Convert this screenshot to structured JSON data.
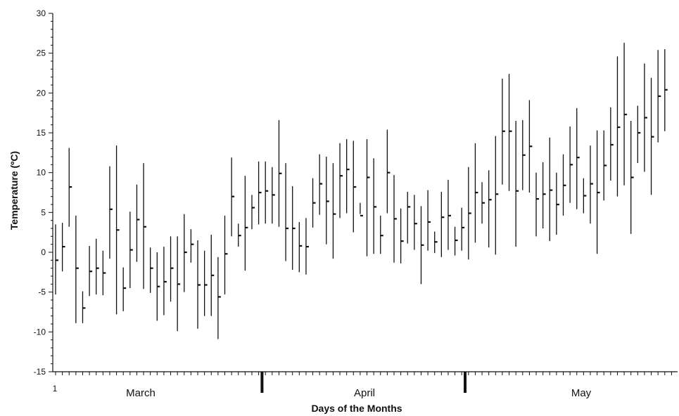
{
  "chart_data": {
    "type": "high-low-average",
    "xlabel": "Days of the Months",
    "ylabel": "Temperature (ºC)",
    "ylim": [
      -15,
      30
    ],
    "y_ticks": [
      30,
      25,
      20,
      15,
      10,
      5,
      0,
      -5,
      -10,
      -15
    ],
    "x_first_label": "1",
    "months": [
      "March",
      "April",
      "May"
    ],
    "month_day_ranges": [
      [
        1,
        31
      ],
      [
        32,
        61
      ],
      [
        62,
        92
      ]
    ],
    "grid": false,
    "series": [
      {
        "values": [
          [
            -5.3,
            3.5,
            -1.0
          ],
          [
            -2.4,
            3.7,
            0.7
          ],
          [
            3.2,
            13.1,
            8.2
          ],
          [
            -8.9,
            4.6,
            -2.0
          ],
          [
            -8.9,
            -4.9,
            -7.0
          ],
          [
            -5.5,
            0.8,
            -2.4
          ],
          [
            -5.3,
            1.7,
            -2.0
          ],
          [
            -5.4,
            0.2,
            -2.6
          ],
          [
            -0.8,
            10.8,
            5.4
          ],
          [
            -7.8,
            13.4,
            2.8
          ],
          [
            -7.4,
            -1.9,
            -4.5
          ],
          [
            -4.5,
            5.1,
            0.3
          ],
          [
            -1.2,
            8.5,
            4.1
          ],
          [
            -4.6,
            11.2,
            3.2
          ],
          [
            -5.1,
            0.6,
            -2.0
          ],
          [
            -8.6,
            0.0,
            -4.3
          ],
          [
            -7.9,
            0.7,
            -3.7
          ],
          [
            -6.2,
            2.0,
            -2.0
          ],
          [
            -9.9,
            2.0,
            -4.0
          ],
          [
            -5.0,
            4.8,
            0.0
          ],
          [
            -1.3,
            2.9,
            1.0
          ],
          [
            -9.6,
            1.5,
            -4.1
          ],
          [
            -8.0,
            0.2,
            -4.1
          ],
          [
            -8.0,
            2.2,
            -2.9
          ],
          [
            -10.9,
            -0.6,
            -5.6
          ],
          [
            -5.3,
            4.6,
            -0.2
          ],
          [
            2.0,
            11.9,
            7.0
          ],
          [
            0.7,
            3.6,
            2.1
          ],
          [
            -2.3,
            9.6,
            3.1
          ],
          [
            2.9,
            7.2,
            5.6
          ],
          [
            3.5,
            11.4,
            7.5
          ],
          [
            3.6,
            11.4,
            7.7
          ],
          [
            3.6,
            10.7,
            7.2
          ],
          [
            3.2,
            16.6,
            9.9
          ],
          [
            -1.1,
            11.2,
            3.0
          ],
          [
            -2.2,
            8.3,
            3.0
          ],
          [
            -2.5,
            3.8,
            0.8
          ],
          [
            -2.8,
            4.3,
            0.7
          ],
          [
            3.1,
            9.3,
            6.2
          ],
          [
            4.7,
            12.3,
            8.6
          ],
          [
            1.0,
            12.0,
            6.4
          ],
          [
            -0.8,
            11.2,
            4.8
          ],
          [
            4.3,
            13.7,
            9.6
          ],
          [
            4.9,
            14.2,
            10.4
          ],
          [
            2.5,
            14.0,
            8.2
          ],
          [
            4.8,
            6.2,
            4.6
          ],
          [
            -0.5,
            14.2,
            9.4
          ],
          [
            -0.2,
            11.8,
            5.7
          ],
          [
            -0.2,
            4.6,
            2.1
          ],
          [
            4.9,
            15.4,
            10.0
          ],
          [
            -1.3,
            9.7,
            4.2
          ],
          [
            -1.4,
            5.5,
            1.4
          ],
          [
            1.1,
            7.6,
            5.7
          ],
          [
            0.3,
            7.2,
            3.6
          ],
          [
            -4.0,
            5.8,
            0.9
          ],
          [
            0.2,
            7.8,
            3.8
          ],
          [
            -0.1,
            2.6,
            1.3
          ],
          [
            -0.6,
            7.6,
            4.4
          ],
          [
            0.3,
            9.1,
            4.6
          ],
          [
            -0.4,
            3.2,
            1.5
          ],
          [
            0.2,
            5.6,
            3.1
          ],
          [
            -0.9,
            10.7,
            4.9
          ],
          [
            1.2,
            13.7,
            7.5
          ],
          [
            3.6,
            8.8,
            6.2
          ],
          [
            0.6,
            10.3,
            6.6
          ],
          [
            -0.3,
            14.6,
            7.3
          ],
          [
            8.5,
            21.8,
            15.2
          ],
          [
            7.7,
            22.4,
            15.2
          ],
          [
            0.7,
            16.5,
            7.7
          ],
          [
            7.8,
            16.6,
            12.2
          ],
          [
            7.5,
            19.1,
            13.3
          ],
          [
            2.0,
            10.0,
            6.7
          ],
          [
            3.0,
            11.3,
            7.3
          ],
          [
            1.4,
            14.4,
            7.8
          ],
          [
            2.2,
            10.0,
            6.0
          ],
          [
            4.6,
            12.3,
            8.4
          ],
          [
            6.2,
            15.8,
            11.0
          ],
          [
            5.4,
            18.1,
            11.9
          ],
          [
            4.9,
            9.3,
            7.1
          ],
          [
            3.6,
            13.4,
            8.6
          ],
          [
            -0.2,
            15.3,
            7.5
          ],
          [
            6.5,
            15.3,
            10.9
          ],
          [
            9.0,
            18.2,
            13.5
          ],
          [
            7.0,
            24.6,
            15.7
          ],
          [
            8.4,
            26.3,
            17.3
          ],
          [
            2.3,
            16.5,
            9.4
          ],
          [
            11.2,
            18.4,
            15.0
          ],
          [
            10.1,
            23.7,
            16.9
          ],
          [
            7.2,
            21.9,
            14.5
          ],
          [
            13.8,
            25.4,
            19.6
          ],
          [
            15.2,
            25.5,
            20.4
          ]
        ]
      }
    ]
  }
}
